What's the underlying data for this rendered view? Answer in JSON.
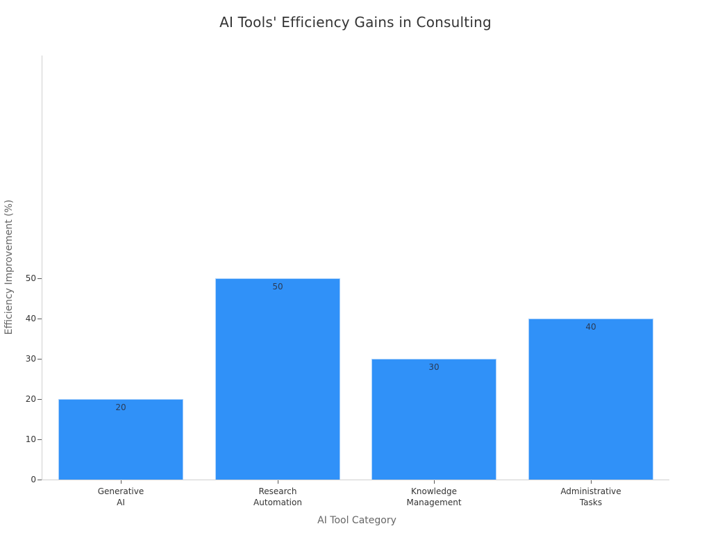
{
  "chart_data": {
    "type": "bar",
    "title": "AI Tools' Efficiency Gains in Consulting",
    "xlabel": "AI Tool Category",
    "ylabel": "Efficiency Improvement (%)",
    "categories": [
      "Generative AI",
      "Research Automation",
      "Knowledge Management",
      "Administrative Tasks"
    ],
    "category_lines": [
      [
        "Generative",
        "AI"
      ],
      [
        "Research",
        "Automation"
      ],
      [
        "Knowledge",
        "Management"
      ],
      [
        "Administrative",
        "Tasks"
      ]
    ],
    "values": [
      20,
      50,
      30,
      40
    ],
    "data_labels": [
      "20",
      "50",
      "30",
      "40"
    ],
    "ylim": [
      0,
      52
    ],
    "yticks": [
      0,
      10,
      20,
      30,
      40,
      50
    ],
    "grid": false,
    "legend": null,
    "bar_color": "#3091f8"
  }
}
